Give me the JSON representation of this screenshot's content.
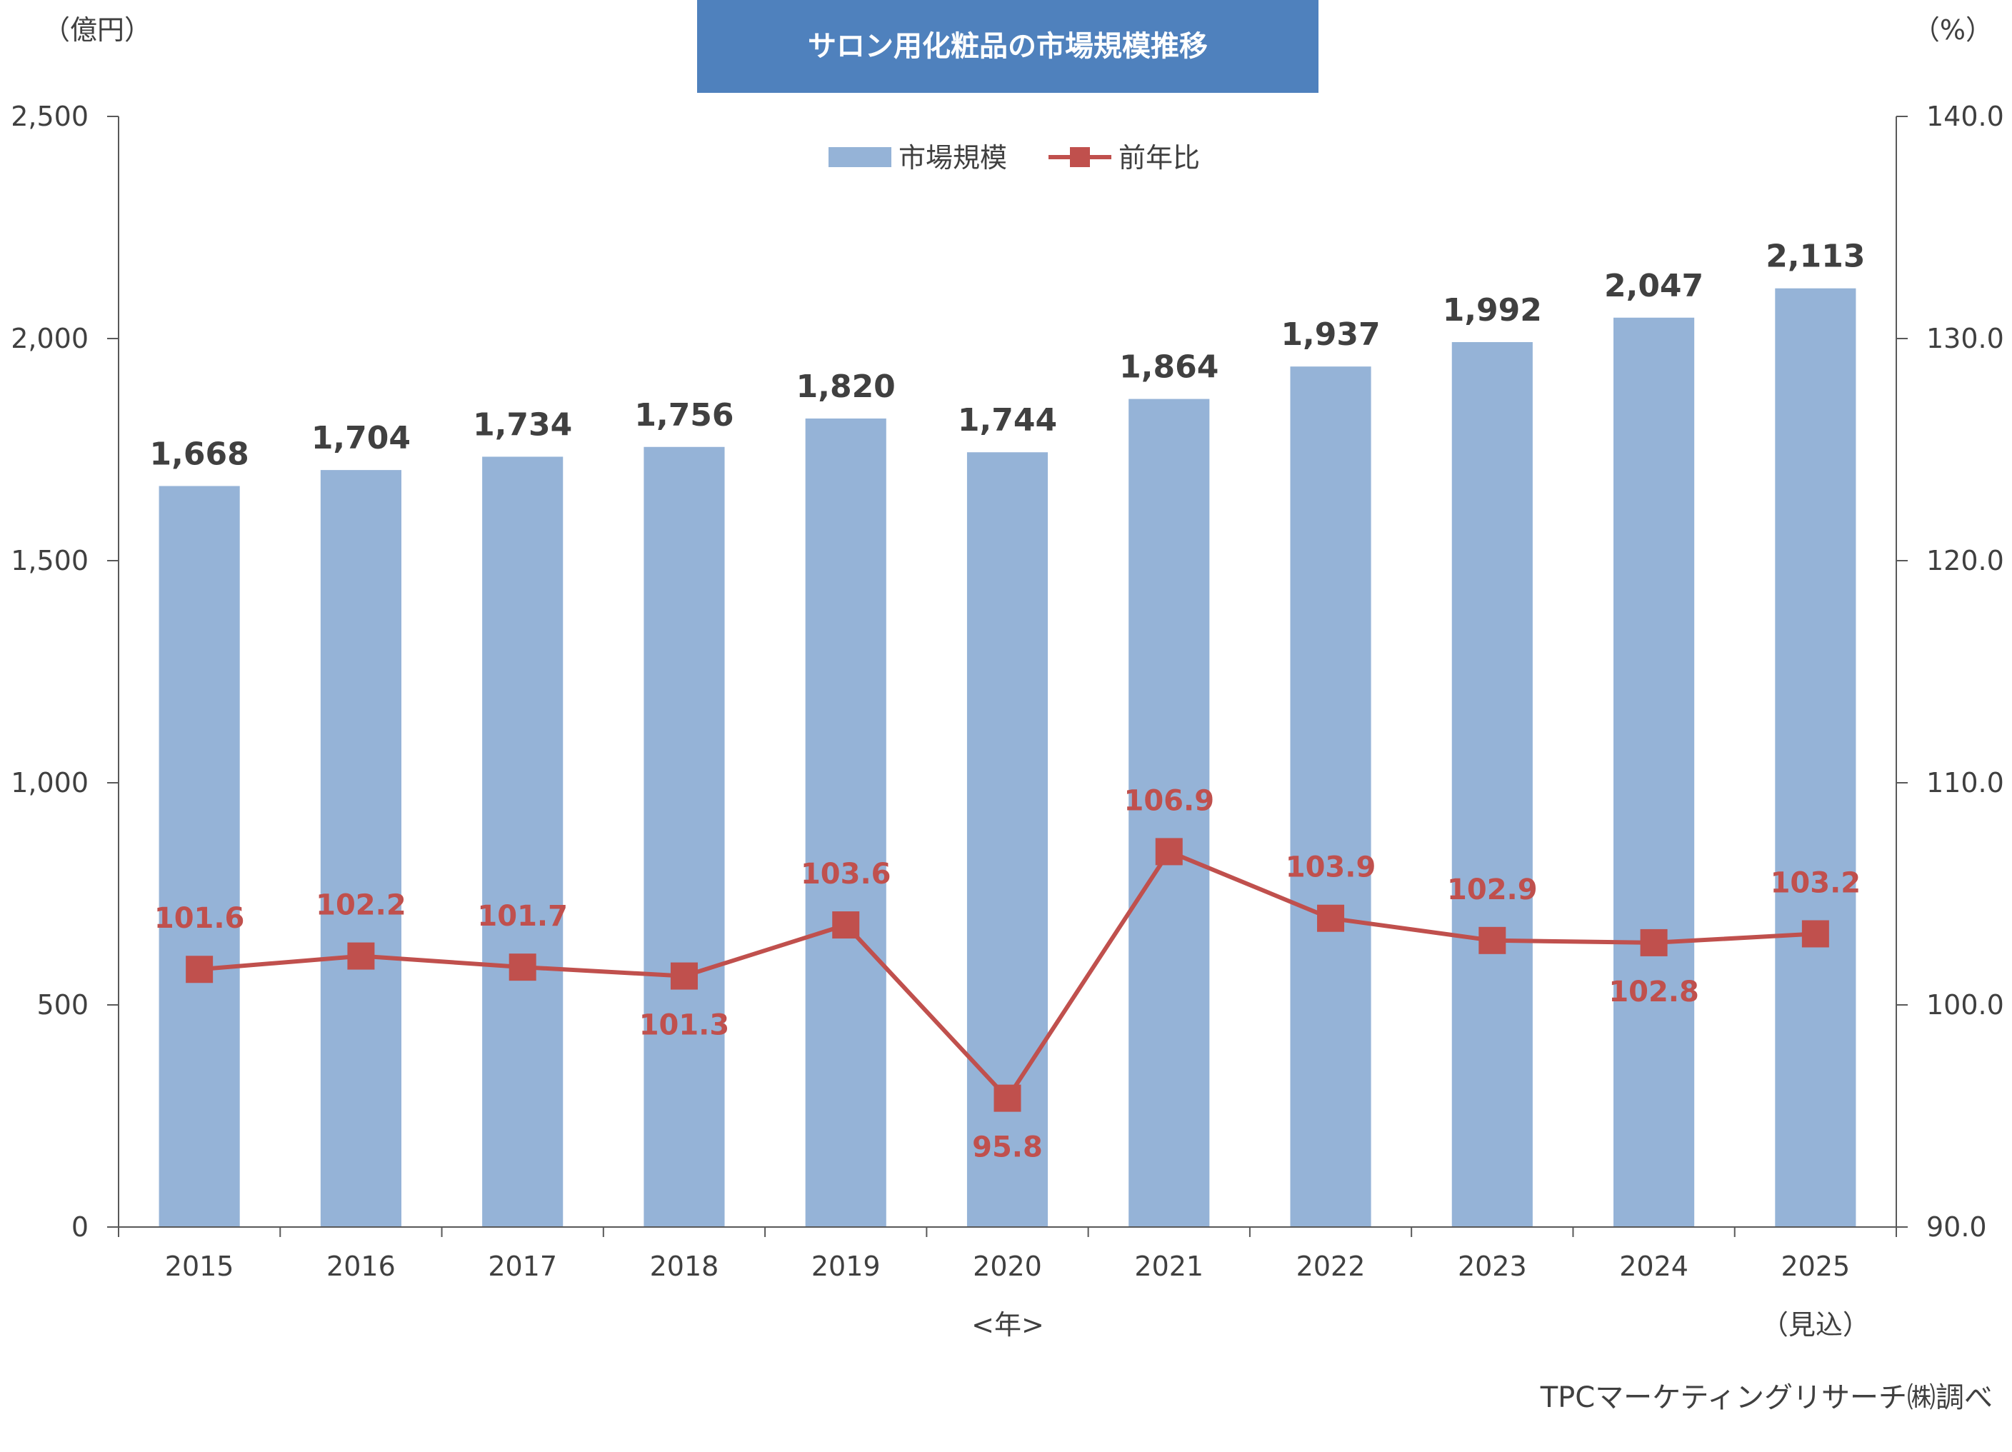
{
  "chart_data": {
    "type": "bar",
    "title": "サロン用化粧品の市場規模推移",
    "categories": [
      "2015",
      "2016",
      "2017",
      "2018",
      "2019",
      "2020",
      "2021",
      "2022",
      "2023",
      "2024",
      "2025"
    ],
    "series": [
      {
        "name": "市場規模",
        "type": "bar",
        "axis": "left",
        "color": "#95b3d7",
        "values": [
          1668,
          1704,
          1734,
          1756,
          1820,
          1744,
          1864,
          1937,
          1992,
          2047,
          2113
        ],
        "labels": [
          "1,668",
          "1,704",
          "1,734",
          "1,756",
          "1,820",
          "1,744",
          "1,864",
          "1,937",
          "1,992",
          "2,047",
          "2,113"
        ]
      },
      {
        "name": "前年比",
        "type": "line",
        "axis": "right",
        "color": "#c0504d",
        "values": [
          101.6,
          102.2,
          101.7,
          101.3,
          103.6,
          95.8,
          106.9,
          103.9,
          102.9,
          102.8,
          103.2
        ],
        "labels": [
          "101.6",
          "102.2",
          "101.7",
          "101.3",
          "103.6",
          "95.8",
          "106.9",
          "103.9",
          "102.9",
          "102.8",
          "103.2"
        ]
      }
    ],
    "ylabel_left": "（億円）",
    "ylabel_right": "（%）",
    "xlabel": "<年>",
    "ylim_left": [
      0,
      2500
    ],
    "ylim_right": [
      90,
      140
    ],
    "yticks_left": [
      0,
      500,
      1000,
      1500,
      2000,
      2500
    ],
    "yticks_left_labels": [
      "0",
      "500",
      "1,000",
      "1,500",
      "2,000",
      "2,500"
    ],
    "yticks_right": [
      90,
      100,
      110,
      120,
      130,
      140
    ],
    "yticks_right_labels": [
      "90.0",
      "100.0",
      "110.0",
      "120.0",
      "130.0",
      "140.0"
    ],
    "grid": false,
    "legend_position": "top-center",
    "x_note": "（見込）",
    "source": "TPCマーケティングリサーチ㈱調べ"
  },
  "colors": {
    "title_bg": "#4f81bd",
    "bar": "#95b3d7",
    "line": "#c0504d",
    "axis": "#595959",
    "text": "#404040"
  }
}
